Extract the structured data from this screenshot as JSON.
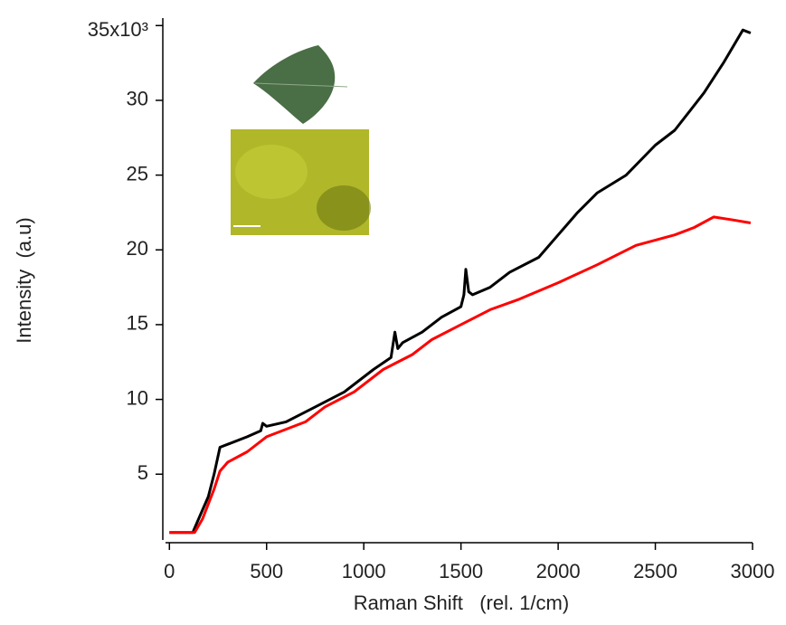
{
  "chart_data": {
    "type": "line",
    "x_label": "Raman Shift   (rel. 1/cm)",
    "y_label": "Intensity  (a.u)",
    "xlim": [
      -20,
      3000
    ],
    "ylim": [
      0.6,
      35.5
    ],
    "xticks": [
      0,
      500,
      1000,
      1500,
      2000,
      2500,
      3000
    ],
    "yticks": [
      5,
      10,
      15,
      20,
      25,
      30,
      {
        "value": 35,
        "label": "35x10³"
      }
    ],
    "series": [
      {
        "color": "#000000",
        "x": [
          0,
          120,
          160,
          200,
          230,
          260,
          300,
          400,
          470,
          480,
          500,
          600,
          750,
          900,
          1050,
          1140,
          1160,
          1175,
          1200,
          1300,
          1400,
          1500,
          1515,
          1525,
          1540,
          1560,
          1650,
          1750,
          1900,
          2000,
          2100,
          2200,
          2350,
          2500,
          2600,
          2750,
          2850,
          2950,
          2990
        ],
        "values": [
          1.1,
          1.1,
          2.3,
          3.5,
          5,
          6.8,
          7,
          7.5,
          7.9,
          8.4,
          8.2,
          8.5,
          9.5,
          10.5,
          12,
          12.8,
          14.5,
          13.4,
          13.8,
          14.5,
          15.5,
          16.2,
          17,
          18.7,
          17.2,
          17,
          17.5,
          18.5,
          19.5,
          21,
          22.5,
          23.8,
          25,
          27,
          28,
          30.5,
          32.5,
          34.7,
          34.5
        ]
      },
      {
        "color": "#ff0000",
        "x": [
          0,
          130,
          170,
          230,
          260,
          300,
          400,
          500,
          700,
          800,
          950,
          1100,
          1250,
          1350,
          1500,
          1650,
          1800,
          2000,
          2200,
          2400,
          2600,
          2700,
          2800,
          2900,
          2990
        ],
        "values": [
          1.1,
          1.1,
          2,
          4,
          5.2,
          5.8,
          6.5,
          7.5,
          8.5,
          9.5,
          10.5,
          12,
          13,
          14,
          15,
          16,
          16.7,
          17.8,
          19,
          20.3,
          21,
          21.5,
          22.2,
          22,
          21.8
        ]
      }
    ]
  }
}
